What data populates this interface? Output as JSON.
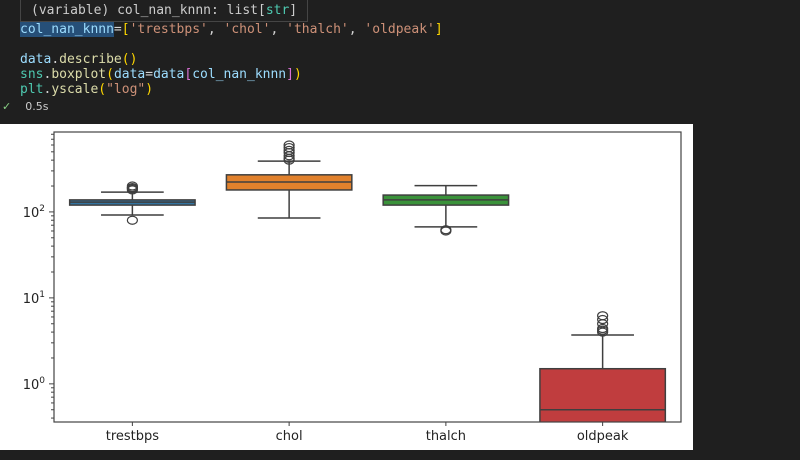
{
  "tooltip": {
    "prefix": "(variable) col_nan_knnn: list[",
    "type": "str",
    "suffix": "]"
  },
  "code_lines": [
    [
      {
        "t": "col_nan_knnn",
        "c": "#9cdcfe",
        "hl": true
      },
      {
        "t": "=",
        "c": "#d4d4d4"
      },
      {
        "t": "[",
        "c": "#ffd700"
      },
      {
        "t": "'trestbps'",
        "c": "#ce9178"
      },
      {
        "t": ", ",
        "c": "#d4d4d4"
      },
      {
        "t": "'chol'",
        "c": "#ce9178"
      },
      {
        "t": ", ",
        "c": "#d4d4d4"
      },
      {
        "t": "'thalch'",
        "c": "#ce9178"
      },
      {
        "t": ", ",
        "c": "#d4d4d4"
      },
      {
        "t": "'oldpeak'",
        "c": "#ce9178"
      },
      {
        "t": "]",
        "c": "#ffd700"
      }
    ],
    [],
    [
      {
        "t": "data",
        "c": "#9cdcfe"
      },
      {
        "t": ".",
        "c": "#d4d4d4"
      },
      {
        "t": "describe",
        "c": "#dcdcaa"
      },
      {
        "t": "()",
        "c": "#ffd700"
      }
    ],
    [
      {
        "t": "sns",
        "c": "#4ec9b0"
      },
      {
        "t": ".",
        "c": "#d4d4d4"
      },
      {
        "t": "boxplot",
        "c": "#dcdcaa"
      },
      {
        "t": "(",
        "c": "#ffd700"
      },
      {
        "t": "data",
        "c": "#9cdcfe"
      },
      {
        "t": "=",
        "c": "#d4d4d4"
      },
      {
        "t": "data",
        "c": "#9cdcfe"
      },
      {
        "t": "[",
        "c": "#da70d6"
      },
      {
        "t": "col_nan_knnn",
        "c": "#9cdcfe"
      },
      {
        "t": "]",
        "c": "#da70d6"
      },
      {
        "t": ")",
        "c": "#ffd700"
      }
    ],
    [
      {
        "t": "plt",
        "c": "#4ec9b0"
      },
      {
        "t": ".",
        "c": "#d4d4d4"
      },
      {
        "t": "yscale",
        "c": "#dcdcaa"
      },
      {
        "t": "(",
        "c": "#ffd700"
      },
      {
        "t": "\"log\"",
        "c": "#ce9178"
      },
      {
        "t": ")",
        "c": "#ffd700"
      }
    ]
  ],
  "status": {
    "check_icon": "check-icon",
    "time": "0.5s"
  },
  "chart_data": {
    "type": "box",
    "yscale": "log",
    "ylim": [
      0.36,
      850
    ],
    "yticks": [
      {
        "base": "10",
        "exp": "0",
        "value": 1
      },
      {
        "base": "10",
        "exp": "1",
        "value": 10
      },
      {
        "base": "10",
        "exp": "2",
        "value": 100
      }
    ],
    "grid": false,
    "categories": [
      "trestbps",
      "chol",
      "thalch",
      "oldpeak"
    ],
    "series": [
      {
        "category": "trestbps",
        "color": "#3274a1",
        "q1": 120,
        "median": 130,
        "q3": 138,
        "whisker_low": 92,
        "whisker_high": 170,
        "outliers": [
          80,
          180,
          185,
          190,
          192,
          200
        ]
      },
      {
        "category": "chol",
        "color": "#e1812c",
        "q1": 180,
        "median": 223,
        "q3": 270,
        "whisker_low": 85,
        "whisker_high": 390,
        "outliers": [
          400,
          420,
          450,
          490,
          520,
          560,
          600
        ]
      },
      {
        "category": "thalch",
        "color": "#3a923a",
        "q1": 120,
        "median": 138,
        "q3": 157,
        "whisker_low": 67,
        "whisker_high": 202,
        "outliers": [
          60,
          62
        ]
      },
      {
        "category": "oldpeak",
        "color": "#c03d3e",
        "q1": 0,
        "median": 0.5,
        "q3": 1.5,
        "whisker_low": 0,
        "whisker_high": 3.7,
        "outliers": [
          4.0,
          4.2,
          4.4,
          5.0,
          5.6,
          6.2
        ]
      }
    ]
  }
}
